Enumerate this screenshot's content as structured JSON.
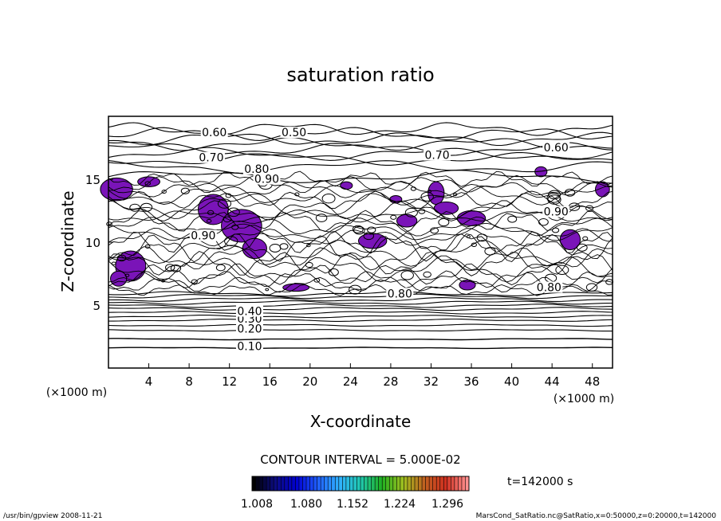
{
  "chart_data": {
    "type": "contour",
    "title": "saturation ratio",
    "xlabel": "X-coordinate",
    "ylabel": "Z-coordinate",
    "x_unit": "(×1000 m)",
    "z_unit": "(×1000 m)",
    "xlim": [
      0,
      50
    ],
    "ylim": [
      0,
      20
    ],
    "x_ticks": [
      4,
      8,
      12,
      16,
      20,
      24,
      28,
      32,
      36,
      40,
      44,
      48
    ],
    "y_ticks": [
      5,
      10,
      15
    ],
    "contour_interval_label": "CONTOUR INTERVAL = 5.000E-02",
    "time_label": "t=142000 s",
    "colorbar_ticks": [
      "1.008",
      "1.080",
      "1.152",
      "1.224",
      "1.296"
    ],
    "colorbar_colors": [
      "#000000",
      "#0c0c80",
      "#0000d0",
      "#2060ff",
      "#30b0ff",
      "#20c8b0",
      "#20b020",
      "#a0c020",
      "#c06020",
      "#d03020",
      "#ff9090"
    ],
    "fill_color": "#7a14b8",
    "contour_labels": [
      {
        "text": "0.10",
        "x": 14.0,
        "z": 1.6
      },
      {
        "text": "0.20",
        "x": 14.0,
        "z": 3.0
      },
      {
        "text": "0.30",
        "x": 14.0,
        "z": 3.8
      },
      {
        "text": "0.40",
        "x": 14.0,
        "z": 4.4
      },
      {
        "text": "0.60",
        "x": 10.5,
        "z": 18.6
      },
      {
        "text": "0.50",
        "x": 18.4,
        "z": 18.6
      },
      {
        "text": "0.70",
        "x": 10.2,
        "z": 16.6
      },
      {
        "text": "0.80",
        "x": 14.7,
        "z": 15.7
      },
      {
        "text": "0.90",
        "x": 15.7,
        "z": 14.9
      },
      {
        "text": "0.70",
        "x": 32.6,
        "z": 16.8
      },
      {
        "text": "0.60",
        "x": 44.4,
        "z": 17.4
      },
      {
        "text": "0.90",
        "x": 9.4,
        "z": 10.4
      },
      {
        "text": "0.90",
        "x": 44.4,
        "z": 12.3
      },
      {
        "text": "0.80",
        "x": 28.9,
        "z": 5.8
      },
      {
        "text": "0.80",
        "x": 43.7,
        "z": 6.3
      }
    ]
  },
  "footer": {
    "left": "/usr/bin/gpview 2008-11-21",
    "right": "MarsCond_SatRatio.nc@SatRatio,x=0:50000,z=0:20000,t=142000"
  }
}
